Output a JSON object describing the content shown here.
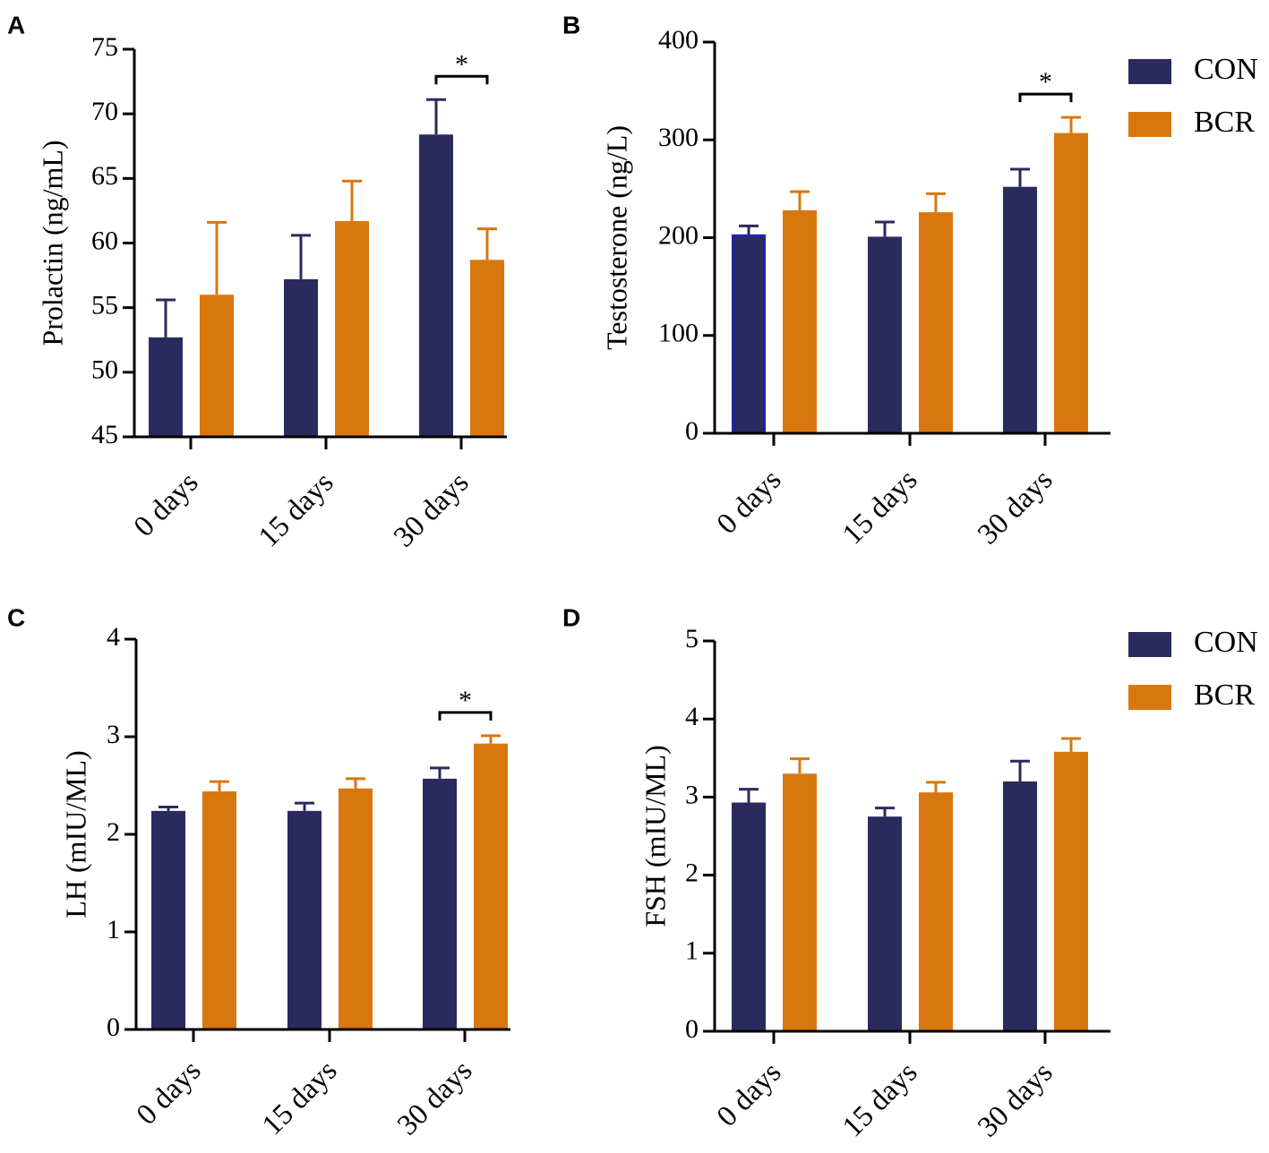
{
  "figure": {
    "series_colors": {
      "CON": "#2b2a5e",
      "BCR": "#d9770f"
    },
    "legends": [
      {
        "panel": "B",
        "entries": [
          "CON",
          "BCR"
        ]
      },
      {
        "panel": "D",
        "entries": [
          "CON",
          "BCR"
        ]
      }
    ]
  },
  "chart_data": [
    {
      "panel": "A",
      "type": "bar",
      "ylabel": "Prolactin (ng/mL)",
      "ylim": [
        45,
        75
      ],
      "yticks": [
        45,
        50,
        55,
        60,
        65,
        70,
        75
      ],
      "categories": [
        "0 days",
        "15 days",
        "30 days"
      ],
      "series": [
        {
          "name": "CON",
          "values": [
            52.7,
            57.2,
            68.4
          ],
          "errors": [
            2.9,
            3.4,
            2.7
          ]
        },
        {
          "name": "BCR",
          "values": [
            56.0,
            61.7,
            58.7
          ],
          "errors": [
            5.6,
            3.1,
            2.4
          ]
        }
      ],
      "significance": [
        {
          "category": "30 days",
          "label": "*"
        }
      ]
    },
    {
      "panel": "B",
      "type": "bar",
      "ylabel": "Testosterone (ng/L)",
      "ylim": [
        0,
        400
      ],
      "yticks": [
        0,
        100,
        200,
        300,
        400
      ],
      "categories": [
        "0 days",
        "15 days",
        "30 days"
      ],
      "series": [
        {
          "name": "CON",
          "values": [
            202,
            201,
            252
          ],
          "errors": [
            10,
            15,
            18
          ]
        },
        {
          "name": "BCR",
          "values": [
            228,
            226,
            307
          ],
          "errors": [
            19,
            19,
            16
          ]
        }
      ],
      "significance": [
        {
          "category": "30 days",
          "label": "*"
        }
      ]
    },
    {
      "panel": "C",
      "type": "bar",
      "ylabel": "LH (mIU/ML)",
      "ylim": [
        0,
        4
      ],
      "yticks": [
        0,
        1,
        2,
        3,
        4
      ],
      "categories": [
        "0 days",
        "15 days",
        "30 days"
      ],
      "series": [
        {
          "name": "CON",
          "values": [
            2.24,
            2.24,
            2.57
          ],
          "errors": [
            0.04,
            0.08,
            0.11
          ]
        },
        {
          "name": "BCR",
          "values": [
            2.44,
            2.47,
            2.93
          ],
          "errors": [
            0.1,
            0.1,
            0.08
          ]
        }
      ],
      "significance": [
        {
          "category": "30 days",
          "label": "*"
        }
      ]
    },
    {
      "panel": "D",
      "type": "bar",
      "ylabel": "FSH (mIU/ML)",
      "ylim": [
        0,
        5
      ],
      "yticks": [
        0,
        1,
        2,
        3,
        4,
        5
      ],
      "categories": [
        "0 days",
        "15 days",
        "30 days"
      ],
      "series": [
        {
          "name": "CON",
          "values": [
            2.93,
            2.75,
            3.2
          ],
          "errors": [
            0.17,
            0.11,
            0.26
          ]
        },
        {
          "name": "BCR",
          "values": [
            3.3,
            3.06,
            3.58
          ],
          "errors": [
            0.19,
            0.13,
            0.17
          ]
        }
      ],
      "significance": []
    }
  ]
}
